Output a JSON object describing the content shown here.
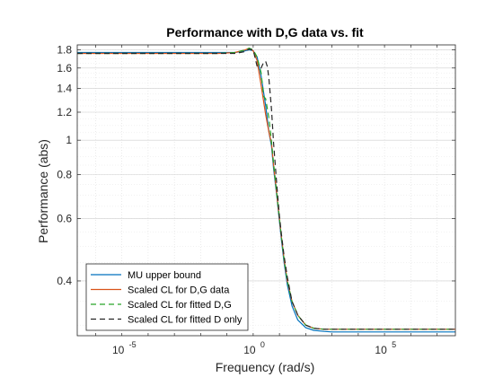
{
  "chart_data": {
    "type": "line",
    "title": "Performance with D,G data vs. fit",
    "xlabel": "Frequency (rad/s)",
    "ylabel": "Performance (abs)",
    "xscale": "log",
    "yscale": "log",
    "xlim": [
      2e-07,
      50000000
    ],
    "ylim": [
      0.28,
      1.86
    ],
    "grid": true,
    "legend_position": "bottom-left",
    "xticks": [
      {
        "value": 1e-05,
        "label": "10",
        "exp": "-5"
      },
      {
        "value": 1,
        "label": "10",
        "exp": "0"
      },
      {
        "value": 100000,
        "label": "10",
        "exp": "5"
      }
    ],
    "yticks": [
      {
        "value": 0.4,
        "label": "0.4"
      },
      {
        "value": 0.6,
        "label": "0.6"
      },
      {
        "value": 0.8,
        "label": "0.8"
      },
      {
        "value": 1,
        "label": "1"
      },
      {
        "value": 1.2,
        "label": "1.2"
      },
      {
        "value": 1.4,
        "label": "1.4"
      },
      {
        "value": 1.6,
        "label": "1.6"
      },
      {
        "value": 1.8,
        "label": "1.8"
      }
    ],
    "series": [
      {
        "name": "MU upper bound",
        "color": "#0072BD",
        "dash": "solid",
        "x": [
          2e-07,
          0.001,
          0.05,
          0.2,
          0.5,
          0.7,
          1.0,
          1.4,
          2,
          3,
          4,
          5,
          6,
          8,
          10,
          12,
          15,
          20,
          30,
          50,
          100,
          200,
          500,
          1000,
          2000,
          10000,
          50000000
        ],
        "y": [
          1.77,
          1.77,
          1.77,
          1.77,
          1.79,
          1.8,
          1.79,
          1.72,
          1.52,
          1.25,
          1.05,
          0.96,
          0.83,
          0.69,
          0.59,
          0.52,
          0.45,
          0.39,
          0.34,
          0.31,
          0.295,
          0.29,
          0.288,
          0.287,
          0.287,
          0.287,
          0.287
        ]
      },
      {
        "name": "Scaled CL for D,G data",
        "color": "#D95319",
        "dash": "solid",
        "x": [
          2e-07,
          0.001,
          0.05,
          0.2,
          0.5,
          0.7,
          1.0,
          1.4,
          2,
          3,
          4,
          5,
          6,
          8,
          10,
          12,
          15,
          20,
          30,
          50,
          100,
          200,
          500,
          1000,
          2000,
          10000,
          50000000
        ],
        "y": [
          1.76,
          1.76,
          1.76,
          1.77,
          1.8,
          1.82,
          1.79,
          1.68,
          1.43,
          1.18,
          1.05,
          0.98,
          0.85,
          0.7,
          0.6,
          0.53,
          0.46,
          0.4,
          0.35,
          0.32,
          0.3,
          0.294,
          0.292,
          0.292,
          0.292,
          0.292,
          0.292
        ]
      },
      {
        "name": "Scaled CL for fitted D,G",
        "color": "#27A327",
        "dash": "dashed",
        "x": [
          2e-07,
          0.001,
          0.05,
          0.2,
          0.5,
          0.7,
          1.0,
          1.4,
          2,
          2.5,
          3,
          4,
          5,
          6,
          8,
          10,
          12,
          15,
          20,
          30,
          50,
          100,
          200,
          500,
          1000,
          2000,
          10000,
          50000000
        ],
        "y": [
          1.76,
          1.76,
          1.76,
          1.77,
          1.8,
          1.82,
          1.8,
          1.72,
          1.55,
          1.33,
          1.31,
          1.15,
          0.99,
          0.86,
          0.7,
          0.6,
          0.53,
          0.46,
          0.4,
          0.35,
          0.32,
          0.3,
          0.294,
          0.292,
          0.292,
          0.292,
          0.292,
          0.292
        ]
      },
      {
        "name": "Scaled CL for fitted D only",
        "color": "#262626",
        "dash": "dashed",
        "x": [
          2e-07,
          0.001,
          0.05,
          0.2,
          0.5,
          0.7,
          1.0,
          1.4,
          2,
          2.5,
          3,
          3.5,
          4,
          5,
          6,
          8,
          10,
          12,
          15,
          20,
          30,
          50,
          100,
          200,
          500,
          1000,
          2000,
          10000,
          50000000
        ],
        "y": [
          1.76,
          1.76,
          1.76,
          1.76,
          1.78,
          1.81,
          1.8,
          1.62,
          1.6,
          1.66,
          1.67,
          1.61,
          1.48,
          1.22,
          0.98,
          0.74,
          0.61,
          0.54,
          0.47,
          0.41,
          0.35,
          0.32,
          0.3,
          0.294,
          0.292,
          0.292,
          0.292,
          0.292,
          0.292
        ]
      }
    ]
  }
}
